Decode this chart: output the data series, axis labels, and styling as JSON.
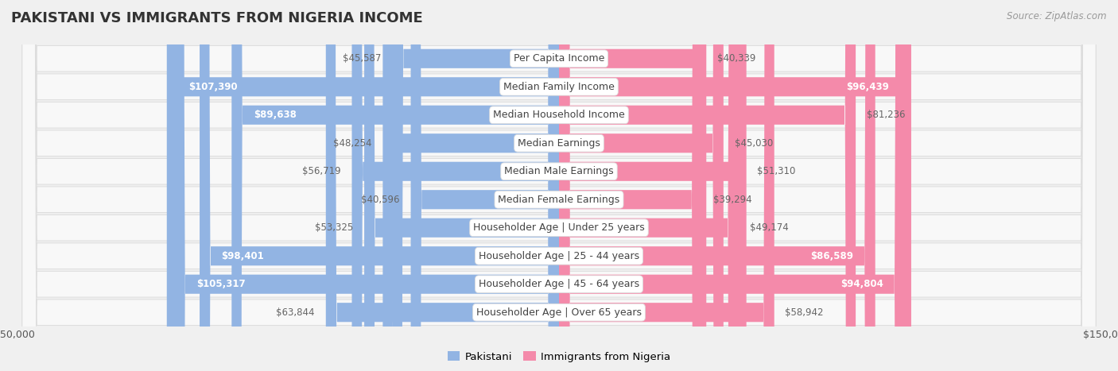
{
  "title": "PAKISTANI VS IMMIGRANTS FROM NIGERIA INCOME",
  "source": "Source: ZipAtlas.com",
  "categories": [
    "Per Capita Income",
    "Median Family Income",
    "Median Household Income",
    "Median Earnings",
    "Median Male Earnings",
    "Median Female Earnings",
    "Householder Age | Under 25 years",
    "Householder Age | 25 - 44 years",
    "Householder Age | 45 - 64 years",
    "Householder Age | Over 65 years"
  ],
  "pakistani": [
    45587,
    107390,
    89638,
    48254,
    56719,
    40596,
    53325,
    98401,
    105317,
    63844
  ],
  "nigeria": [
    40339,
    96439,
    81236,
    45030,
    51310,
    39294,
    49174,
    86589,
    94804,
    58942
  ],
  "max_val": 150000,
  "pakistani_color": "#92b4e3",
  "nigeria_color": "#f48aaa",
  "pakistani_label": "Pakistani",
  "nigeria_label": "Immigrants from Nigeria",
  "bar_height": 0.68,
  "background_color": "#f0f0f0",
  "row_bg_color": "#fafafa",
  "pakistani_text_threshold": 85000,
  "nigeria_text_threshold": 85000,
  "title_fontsize": 13,
  "label_fontsize": 9,
  "value_fontsize": 8.5
}
